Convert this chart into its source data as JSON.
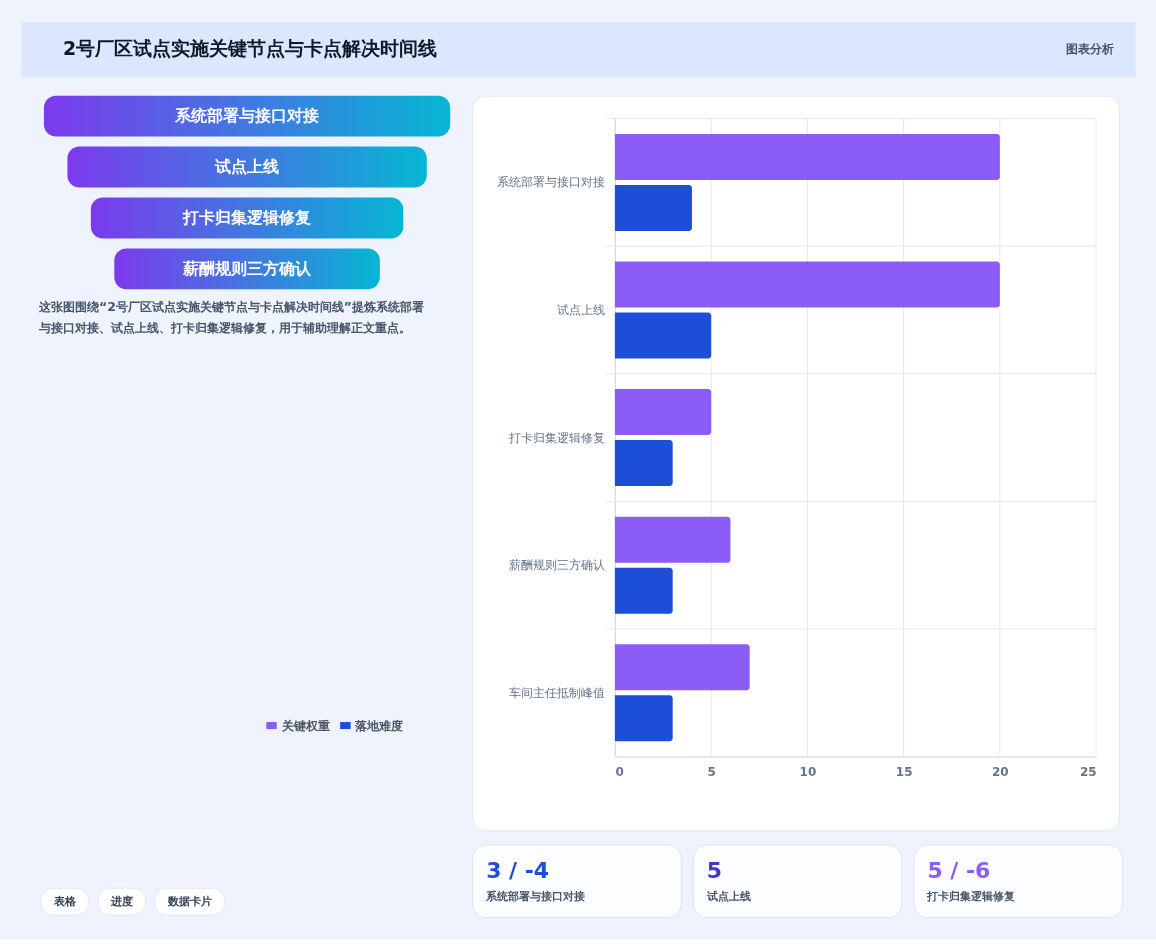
{
  "chart_data": [
    {
      "type": "other",
      "title": "2号厂区试点实施关键节点与卡点解决时间线",
      "annotations": [
        "图表分析"
      ]
    },
    {
      "type": "other",
      "categories": [
        "系统部署与接口对接",
        "试点上线",
        "打卡归集逻辑修复",
        "薪酬规则三方确认"
      ],
      "annotations": [
        "这张图围绕“2号厂区试点实施关键节点与卡点解决时间线”提炼系统部署与接口对接、试点上线、打卡归集逻辑修复，用于辅助理解正文重点。"
      ]
    },
    {
      "type": "bar",
      "orientation": "horizontal",
      "categories": [
        "系统部署与接口对接",
        "试点上线",
        "打卡归集逻辑修复",
        "薪酬规则三方确认",
        "车间主任抵制峰值"
      ],
      "series": [
        {
          "name": "关键权重",
          "color": "#8b5cf6",
          "values": [
            20,
            20,
            5,
            6,
            7
          ]
        },
        {
          "name": "落地难度",
          "color": "#1d4ed8",
          "values": [
            4,
            5,
            3,
            3,
            3
          ]
        }
      ],
      "xlim": [
        0,
        25
      ],
      "xticks": [
        0,
        5,
        10,
        15,
        20,
        25
      ],
      "grid": true,
      "legend": "bottom"
    },
    {
      "type": "other",
      "title": "3 / -4",
      "subtitle": "系统部署与接口对接"
    },
    {
      "type": "other",
      "title": "5",
      "subtitle": "试点上线"
    },
    {
      "type": "other",
      "title": "5 / -6",
      "subtitle": "打卡归集逻辑修复"
    },
    {
      "type": "other",
      "annotations": [
        "表格",
        "进度",
        "数据卡片"
      ]
    }
  ]
}
